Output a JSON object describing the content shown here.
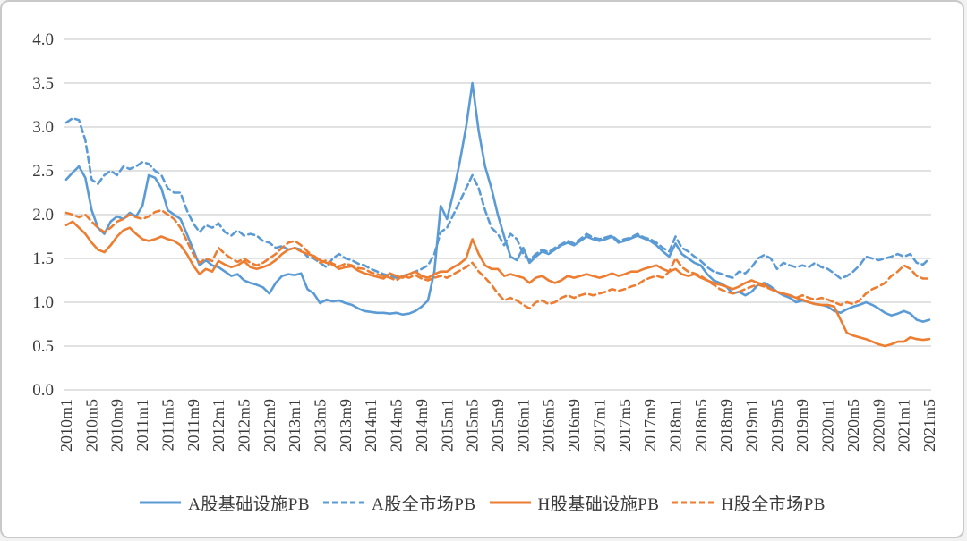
{
  "chart_data": {
    "type": "line",
    "title": "",
    "x_axis": {
      "unit": "month",
      "start": "2010m1",
      "end": "2021m5",
      "n_points": 137,
      "tick_every_n_months": 4,
      "tick_labels": [
        "2010m1",
        "2010m5",
        "2010m9",
        "2011m1",
        "2011m5",
        "2011m9",
        "2012m1",
        "2012m5",
        "2012m9",
        "2013m1",
        "2013m5",
        "2013m9",
        "2014m1",
        "2014m5",
        "2014m9",
        "2015m1",
        "2015m5",
        "2015m9",
        "2016m1",
        "2016m5",
        "2016m9",
        "2017m1",
        "2017m5",
        "2017m9",
        "2018m1",
        "2018m5",
        "2018m9",
        "2019m1",
        "2019m5",
        "2019m9",
        "2020m1",
        "2020m5",
        "2020m9",
        "2021m1",
        "2021m5"
      ]
    },
    "y_axis": {
      "min": 0.0,
      "max": 4.0,
      "step": 0.5,
      "tick_labels": [
        "4.0",
        "3.5",
        "3.0",
        "2.5",
        "2.0",
        "1.5",
        "1.0",
        "0.5",
        "0.0"
      ]
    },
    "grid": "horizontal",
    "legend_position": "bottom",
    "series": [
      {
        "name": "A股基础设施PB",
        "color": "#5B9BD5",
        "style": "solid",
        "values": [
          2.4,
          2.48,
          2.55,
          2.42,
          2.05,
          1.85,
          1.78,
          1.92,
          1.98,
          1.95,
          2.02,
          1.98,
          2.1,
          2.45,
          2.42,
          2.3,
          2.05,
          2.0,
          1.95,
          1.78,
          1.6,
          1.42,
          1.48,
          1.42,
          1.4,
          1.35,
          1.3,
          1.32,
          1.25,
          1.22,
          1.2,
          1.17,
          1.1,
          1.22,
          1.3,
          1.32,
          1.31,
          1.33,
          1.15,
          1.1,
          0.99,
          1.03,
          1.01,
          1.02,
          0.99,
          0.97,
          0.93,
          0.9,
          0.89,
          0.88,
          0.88,
          0.87,
          0.88,
          0.86,
          0.87,
          0.9,
          0.95,
          1.02,
          1.35,
          2.1,
          1.95,
          2.25,
          2.6,
          3.0,
          3.5,
          2.95,
          2.55,
          2.3,
          2.0,
          1.75,
          1.52,
          1.48,
          1.62,
          1.45,
          1.52,
          1.58,
          1.55,
          1.6,
          1.65,
          1.68,
          1.65,
          1.7,
          1.75,
          1.72,
          1.7,
          1.72,
          1.75,
          1.68,
          1.7,
          1.73,
          1.76,
          1.73,
          1.7,
          1.65,
          1.58,
          1.52,
          1.67,
          1.55,
          1.5,
          1.45,
          1.42,
          1.32,
          1.25,
          1.22,
          1.18,
          1.1,
          1.12,
          1.08,
          1.12,
          1.2,
          1.22,
          1.18,
          1.12,
          1.08,
          1.05,
          1.0,
          1.02,
          1.0,
          0.98,
          0.97,
          0.95,
          0.9,
          0.88,
          0.92,
          0.95,
          0.97,
          1.0,
          0.97,
          0.93,
          0.88,
          0.85,
          0.87,
          0.9,
          0.87,
          0.8,
          0.78,
          0.8
        ]
      },
      {
        "name": "A股全市场PB",
        "color": "#5B9BD5",
        "style": "dashed",
        "values": [
          3.05,
          3.1,
          3.08,
          2.85,
          2.4,
          2.35,
          2.45,
          2.5,
          2.45,
          2.55,
          2.52,
          2.55,
          2.6,
          2.58,
          2.5,
          2.45,
          2.3,
          2.25,
          2.25,
          2.05,
          1.9,
          1.8,
          1.88,
          1.85,
          1.9,
          1.8,
          1.76,
          1.82,
          1.76,
          1.78,
          1.76,
          1.7,
          1.68,
          1.62,
          1.64,
          1.6,
          1.62,
          1.6,
          1.52,
          1.5,
          1.45,
          1.4,
          1.5,
          1.55,
          1.5,
          1.48,
          1.44,
          1.42,
          1.38,
          1.35,
          1.32,
          1.3,
          1.28,
          1.3,
          1.32,
          1.35,
          1.38,
          1.42,
          1.55,
          1.8,
          1.85,
          2.0,
          2.15,
          2.3,
          2.45,
          2.3,
          2.05,
          1.85,
          1.78,
          1.65,
          1.78,
          1.72,
          1.55,
          1.48,
          1.55,
          1.6,
          1.57,
          1.62,
          1.66,
          1.7,
          1.67,
          1.72,
          1.78,
          1.74,
          1.72,
          1.74,
          1.76,
          1.7,
          1.72,
          1.74,
          1.78,
          1.74,
          1.72,
          1.68,
          1.62,
          1.58,
          1.75,
          1.62,
          1.58,
          1.52,
          1.47,
          1.4,
          1.35,
          1.33,
          1.3,
          1.28,
          1.35,
          1.33,
          1.4,
          1.5,
          1.54,
          1.5,
          1.38,
          1.45,
          1.42,
          1.4,
          1.42,
          1.4,
          1.45,
          1.4,
          1.38,
          1.33,
          1.27,
          1.3,
          1.35,
          1.42,
          1.52,
          1.5,
          1.48,
          1.5,
          1.52,
          1.55,
          1.52,
          1.55,
          1.45,
          1.43,
          1.5
        ]
      },
      {
        "name": "H股基础设施PB",
        "color": "#ED7D31",
        "style": "solid",
        "values": [
          1.88,
          1.92,
          1.85,
          1.78,
          1.68,
          1.6,
          1.57,
          1.65,
          1.75,
          1.82,
          1.85,
          1.78,
          1.72,
          1.7,
          1.72,
          1.75,
          1.72,
          1.7,
          1.65,
          1.55,
          1.42,
          1.32,
          1.38,
          1.35,
          1.47,
          1.43,
          1.4,
          1.42,
          1.47,
          1.4,
          1.38,
          1.4,
          1.43,
          1.48,
          1.55,
          1.6,
          1.62,
          1.58,
          1.55,
          1.53,
          1.48,
          1.45,
          1.43,
          1.38,
          1.4,
          1.41,
          1.36,
          1.33,
          1.31,
          1.29,
          1.27,
          1.33,
          1.3,
          1.28,
          1.32,
          1.35,
          1.3,
          1.28,
          1.32,
          1.35,
          1.35,
          1.4,
          1.44,
          1.5,
          1.72,
          1.55,
          1.42,
          1.38,
          1.38,
          1.3,
          1.32,
          1.3,
          1.28,
          1.22,
          1.28,
          1.3,
          1.25,
          1.22,
          1.25,
          1.3,
          1.28,
          1.3,
          1.32,
          1.3,
          1.28,
          1.3,
          1.33,
          1.3,
          1.32,
          1.35,
          1.35,
          1.38,
          1.4,
          1.42,
          1.38,
          1.35,
          1.38,
          1.32,
          1.3,
          1.32,
          1.28,
          1.25,
          1.22,
          1.2,
          1.18,
          1.15,
          1.18,
          1.22,
          1.25,
          1.22,
          1.2,
          1.15,
          1.12,
          1.1,
          1.08,
          1.05,
          1.03,
          1.0,
          0.98,
          0.97,
          0.97,
          0.95,
          0.8,
          0.65,
          0.62,
          0.6,
          0.58,
          0.55,
          0.52,
          0.5,
          0.52,
          0.55,
          0.55,
          0.6,
          0.58,
          0.57,
          0.58
        ]
      },
      {
        "name": "H股全市场PB",
        "color": "#ED7D31",
        "style": "dashed",
        "values": [
          2.02,
          2.0,
          1.97,
          2.0,
          1.92,
          1.85,
          1.8,
          1.85,
          1.92,
          1.95,
          2.0,
          1.97,
          1.95,
          1.98,
          2.03,
          2.05,
          2.0,
          1.95,
          1.85,
          1.7,
          1.55,
          1.45,
          1.5,
          1.47,
          1.62,
          1.55,
          1.5,
          1.46,
          1.5,
          1.45,
          1.42,
          1.45,
          1.5,
          1.55,
          1.62,
          1.68,
          1.7,
          1.65,
          1.58,
          1.52,
          1.45,
          1.48,
          1.44,
          1.41,
          1.44,
          1.42,
          1.39,
          1.38,
          1.34,
          1.32,
          1.3,
          1.28,
          1.25,
          1.3,
          1.28,
          1.31,
          1.27,
          1.25,
          1.28,
          1.3,
          1.28,
          1.32,
          1.36,
          1.4,
          1.45,
          1.35,
          1.28,
          1.2,
          1.1,
          1.02,
          1.05,
          1.02,
          0.97,
          0.93,
          1.0,
          1.02,
          0.98,
          1.0,
          1.05,
          1.08,
          1.05,
          1.08,
          1.1,
          1.08,
          1.1,
          1.12,
          1.15,
          1.13,
          1.15,
          1.18,
          1.2,
          1.25,
          1.28,
          1.3,
          1.28,
          1.35,
          1.5,
          1.4,
          1.35,
          1.33,
          1.3,
          1.25,
          1.2,
          1.15,
          1.12,
          1.1,
          1.12,
          1.15,
          1.18,
          1.2,
          1.18,
          1.15,
          1.12,
          1.1,
          1.08,
          1.05,
          1.08,
          1.05,
          1.03,
          1.05,
          1.03,
          1.0,
          0.97,
          1.0,
          0.98,
          1.02,
          1.1,
          1.15,
          1.18,
          1.22,
          1.3,
          1.35,
          1.42,
          1.38,
          1.3,
          1.27,
          1.27
        ]
      }
    ]
  },
  "colors": {
    "background": "#FFFFFF",
    "frame_border": "#C9C9C9",
    "gridline": "#D9D9D9",
    "axis_text": "#3A3A3A",
    "blue": "#5B9BD5",
    "orange": "#ED7D31"
  }
}
